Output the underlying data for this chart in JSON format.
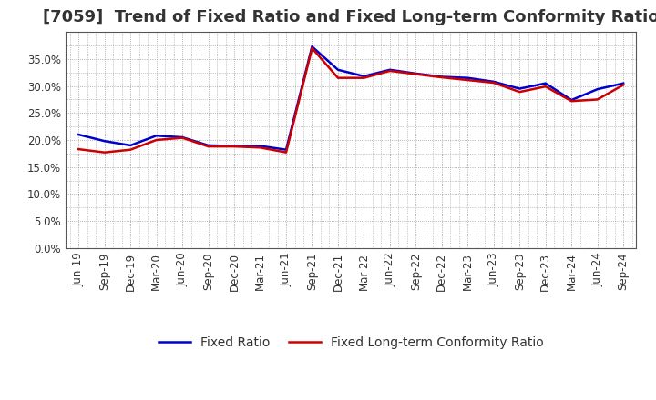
{
  "title": "[7059]  Trend of Fixed Ratio and Fixed Long-term Conformity Ratio",
  "x_labels": [
    "Jun-19",
    "Sep-19",
    "Dec-19",
    "Mar-20",
    "Jun-20",
    "Sep-20",
    "Dec-20",
    "Mar-21",
    "Jun-21",
    "Sep-21",
    "Dec-21",
    "Mar-22",
    "Jun-22",
    "Sep-22",
    "Dec-22",
    "Mar-23",
    "Jun-23",
    "Sep-23",
    "Dec-23",
    "Mar-24",
    "Jun-24",
    "Sep-24"
  ],
  "fixed_ratio": [
    0.21,
    0.198,
    0.19,
    0.208,
    0.205,
    0.19,
    0.189,
    0.189,
    0.182,
    0.373,
    0.33,
    0.318,
    0.33,
    0.323,
    0.317,
    0.315,
    0.308,
    0.295,
    0.305,
    0.274,
    0.294,
    0.305
  ],
  "fixed_lt_ratio": [
    0.183,
    0.177,
    0.182,
    0.2,
    0.204,
    0.188,
    0.188,
    0.186,
    0.177,
    0.37,
    0.315,
    0.315,
    0.328,
    0.322,
    0.316,
    0.311,
    0.306,
    0.289,
    0.299,
    0.272,
    0.275,
    0.302
  ],
  "fixed_ratio_color": "#0000CC",
  "fixed_lt_ratio_color": "#CC0000",
  "background_color": "#FFFFFF",
  "grid_color": "#999999",
  "border_color": "#555555",
  "title_color": "#333333",
  "ylim": [
    0.0,
    0.4
  ],
  "yticks": [
    0.0,
    0.05,
    0.1,
    0.15,
    0.2,
    0.25,
    0.3,
    0.35
  ],
  "line_width": 1.8,
  "title_fontsize": 13,
  "tick_fontsize": 8.5,
  "legend_fontsize": 10
}
